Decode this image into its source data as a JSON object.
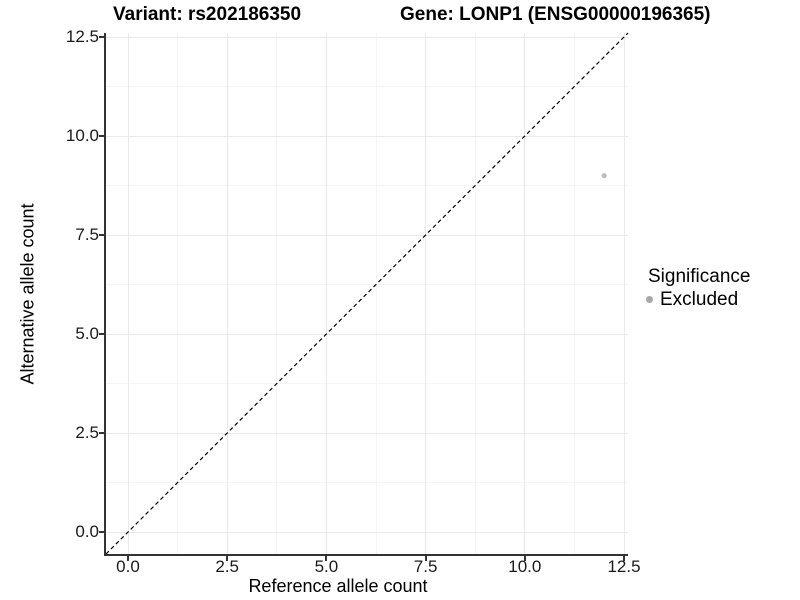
{
  "chart_data": {
    "type": "scatter",
    "title_left": "Variant: rs202186350",
    "title_right": "Gene: LONP1 (ENSG00000196365)",
    "xlabel": "Reference allele count",
    "ylabel": "Alternative allele count",
    "xlim": [
      -0.55,
      12.6
    ],
    "ylim": [
      -0.55,
      12.6
    ],
    "x_ticks": [
      0,
      2.5,
      5,
      7.5,
      10,
      12.5
    ],
    "x_tick_labels": [
      "0.0",
      "2.5",
      "5.0",
      "7.5",
      "10.0",
      "12.5"
    ],
    "x_minor_ticks": [
      1.25,
      3.75,
      6.25,
      8.75,
      11.25
    ],
    "y_ticks": [
      0,
      2.5,
      5,
      7.5,
      10,
      12.5
    ],
    "y_tick_labels": [
      "0.0",
      "2.5",
      "5.0",
      "7.5",
      "10.0",
      "12.5"
    ],
    "y_minor_ticks": [
      1.25,
      3.75,
      6.25,
      8.75,
      11.25
    ],
    "grid": "major+minor",
    "points": [
      {
        "x": 12,
        "y": 9,
        "series": "Excluded"
      }
    ],
    "reference_line": {
      "type": "identity",
      "slope": 1,
      "intercept": 0,
      "style": "dashed",
      "color": "#000000"
    },
    "legend": {
      "title": "Significance",
      "position": "right",
      "items": [
        {
          "label": "Excluded",
          "color": "#a8a8a8"
        }
      ]
    },
    "colors": {
      "point": "#bdbdbd",
      "axis_line": "#333333",
      "grid_major": "#e9e9e9",
      "grid_minor": "#f5f5f5",
      "background": "#ffffff"
    }
  }
}
